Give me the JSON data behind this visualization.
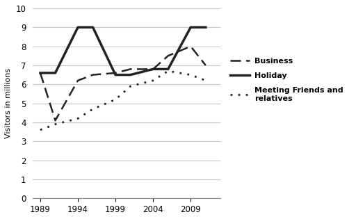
{
  "years": [
    1989,
    1991,
    1994,
    1996,
    1999,
    2001,
    2004,
    2006,
    2009,
    2011
  ],
  "business": [
    6.6,
    4.1,
    6.2,
    6.5,
    6.6,
    6.8,
    6.8,
    7.5,
    8.0,
    7.0
  ],
  "holiday": [
    6.6,
    6.6,
    9.0,
    9.0,
    6.5,
    6.5,
    6.8,
    6.8,
    9.0,
    9.0
  ],
  "friends": [
    3.6,
    3.9,
    4.2,
    4.7,
    5.2,
    5.9,
    6.2,
    6.7,
    6.5,
    6.2
  ],
  "ylabel": "Visitors in millions",
  "ylim": [
    0,
    10
  ],
  "yticks": [
    0,
    1,
    2,
    3,
    4,
    5,
    6,
    7,
    8,
    9,
    10
  ],
  "xticks": [
    1989,
    1994,
    1999,
    2004,
    2009
  ],
  "xlim": [
    1988,
    2013
  ],
  "legend_labels": [
    "Business",
    "Holiday",
    "Meeting Friends and\nrelatives"
  ],
  "background_color": "#ffffff",
  "line_color": "#222222",
  "grid_color": "#c8c8c8"
}
